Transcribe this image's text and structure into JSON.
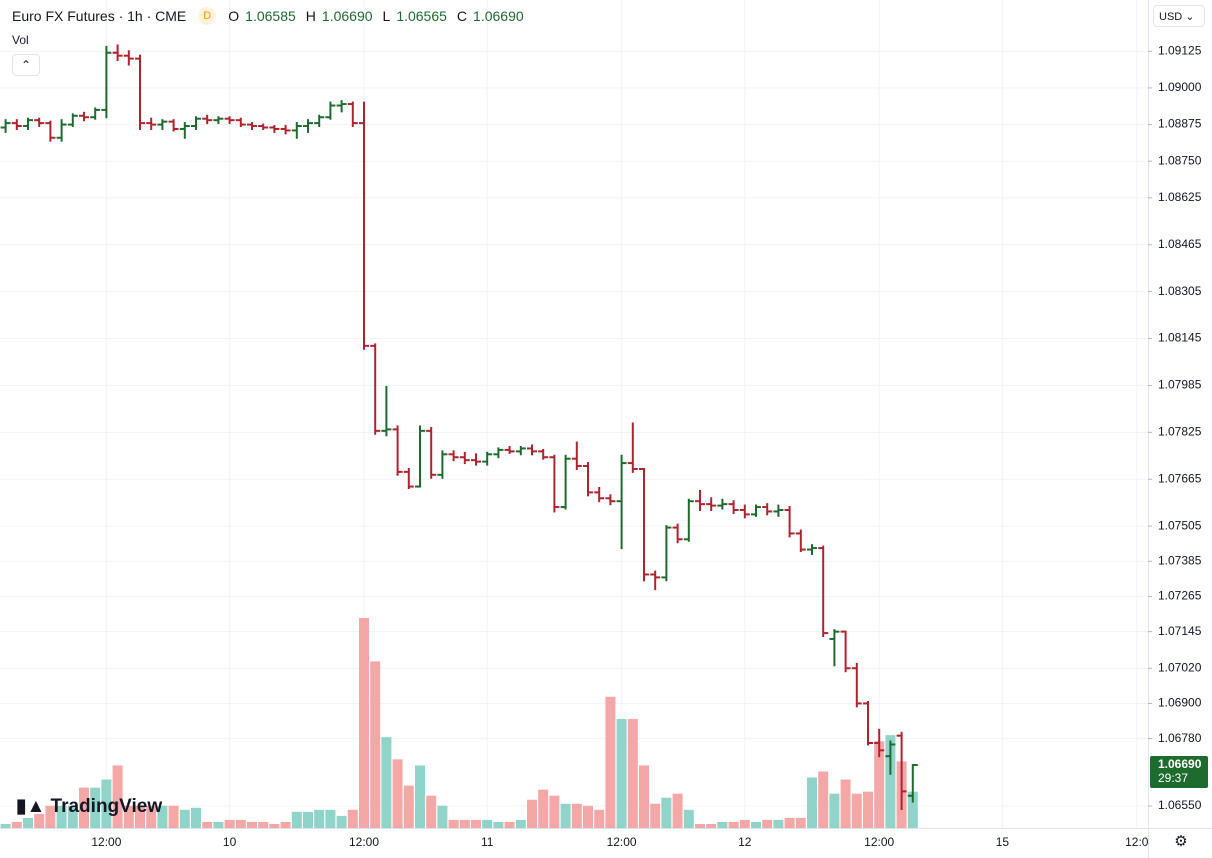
{
  "header": {
    "symbol": "Euro FX Futures · 1h · CME",
    "badge": "D",
    "open_prefix": "O",
    "open": "1.06585",
    "high_prefix": "H",
    "high": "1.06690",
    "low_prefix": "L",
    "low": "1.06565",
    "close_prefix": "C",
    "close": "1.06690",
    "volume_label": "Vol"
  },
  "currency": "USD",
  "logo": "TradingView",
  "price_tag": {
    "price": "1.06690",
    "countdown": "29:37"
  },
  "chart_data": {
    "type": "ohlc",
    "open": [
      1.08865,
      1.0888,
      1.0887,
      1.0889,
      1.0888,
      1.0883,
      1.08875,
      1.08905,
      1.089,
      1.08925,
      1.0912,
      1.0911,
      1.091,
      1.0888,
      1.08875,
      1.08885,
      1.0886,
      1.0887,
      1.08895,
      1.0889,
      1.08895,
      1.0889,
      1.08875,
      1.0887,
      1.08865,
      1.0886,
      1.08855,
      1.0887,
      1.0888,
      1.089,
      1.0894,
      1.08945,
      1.0888,
      1.0812,
      1.0783,
      1.07835,
      1.0769,
      1.0764,
      1.0783,
      1.0768,
      1.0775,
      1.0774,
      1.0773,
      1.07725,
      1.0775,
      1.07765,
      1.0776,
      1.0777,
      1.0776,
      1.0774,
      1.0757,
      1.07735,
      1.0771,
      1.0762,
      1.076,
      1.0759,
      1.0772,
      1.077,
      1.0734,
      1.0733,
      1.075,
      1.0746,
      1.0759,
      1.0758,
      1.07575,
      1.0758,
      1.0756,
      1.07545,
      1.0757,
      1.07555,
      1.0756,
      1.0748,
      1.07425,
      1.0743,
      1.0712,
      1.07145,
      1.0702,
      1.069,
      1.06765,
      1.0672,
      1.0679,
      1.06585
    ],
    "high": [
      1.0889,
      1.0889,
      1.08895,
      1.08895,
      1.08885,
      1.0889,
      1.0891,
      1.08915,
      1.0893,
      1.0914,
      1.09145,
      1.09125,
      1.0911,
      1.08895,
      1.0889,
      1.0889,
      1.0888,
      1.089,
      1.08905,
      1.089,
      1.089,
      1.08895,
      1.0888,
      1.08875,
      1.0887,
      1.0887,
      1.0888,
      1.0889,
      1.08905,
      1.0895,
      1.08955,
      1.0895,
      1.0895,
      1.08125,
      1.0798,
      1.07845,
      1.077,
      1.07845,
      1.0784,
      1.0776,
      1.0776,
      1.07755,
      1.0775,
      1.07755,
      1.0777,
      1.07775,
      1.07775,
      1.0778,
      1.07765,
      1.07745,
      1.07745,
      1.0779,
      1.0772,
      1.07635,
      1.0761,
      1.07745,
      1.07855,
      1.077,
      1.0735,
      1.07505,
      1.0751,
      1.07595,
      1.07625,
      1.076,
      1.07595,
      1.0759,
      1.07575,
      1.07575,
      1.0758,
      1.07575,
      1.0757,
      1.0749,
      1.0744,
      1.07435,
      1.0715,
      1.07145,
      1.07035,
      1.06905,
      1.0681,
      1.0677,
      1.068,
      1.0669
    ],
    "low": [
      1.0885,
      1.0886,
      1.0886,
      1.0887,
      1.0882,
      1.0882,
      1.0887,
      1.0889,
      1.08895,
      1.089,
      1.09095,
      1.0908,
      1.0886,
      1.0886,
      1.0886,
      1.08855,
      1.0883,
      1.0886,
      1.0888,
      1.0888,
      1.0888,
      1.0887,
      1.0886,
      1.0886,
      1.0885,
      1.08845,
      1.0883,
      1.0885,
      1.0887,
      1.08895,
      1.0892,
      1.0887,
      1.0811,
      1.0782,
      1.07815,
      1.0768,
      1.07635,
      1.0764,
      1.0767,
      1.0767,
      1.0773,
      1.0772,
      1.07715,
      1.07715,
      1.0774,
      1.07755,
      1.0775,
      1.0775,
      1.07735,
      1.07555,
      1.07565,
      1.077,
      1.0761,
      1.0759,
      1.0758,
      1.0743,
      1.0769,
      1.0732,
      1.0729,
      1.0732,
      1.0745,
      1.07455,
      1.0756,
      1.0756,
      1.07565,
      1.0755,
      1.07535,
      1.0754,
      1.07545,
      1.0754,
      1.0747,
      1.0742,
      1.0741,
      1.0713,
      1.0703,
      1.0701,
      1.0689,
      1.0676,
      1.0672,
      1.0666,
      1.0654,
      1.06565
    ],
    "close": [
      1.0888,
      1.0887,
      1.0889,
      1.0888,
      1.0883,
      1.08875,
      1.08905,
      1.089,
      1.08925,
      1.0912,
      1.0911,
      1.091,
      1.0888,
      1.08875,
      1.08885,
      1.0886,
      1.0887,
      1.08895,
      1.0889,
      1.08895,
      1.0889,
      1.08875,
      1.0887,
      1.08865,
      1.0886,
      1.08855,
      1.0887,
      1.0888,
      1.089,
      1.0894,
      1.08945,
      1.0888,
      1.0812,
      1.0783,
      1.07835,
      1.0769,
      1.0764,
      1.0783,
      1.0768,
      1.0775,
      1.0774,
      1.0773,
      1.07725,
      1.0775,
      1.07765,
      1.0776,
      1.0777,
      1.0776,
      1.0774,
      1.0757,
      1.07735,
      1.0771,
      1.0762,
      1.076,
      1.0759,
      1.0772,
      1.077,
      1.0734,
      1.0733,
      1.075,
      1.0746,
      1.0759,
      1.0758,
      1.07575,
      1.0758,
      1.0756,
      1.07545,
      1.0757,
      1.07555,
      1.0756,
      1.0748,
      1.07425,
      1.0743,
      1.0714,
      1.07145,
      1.0702,
      1.069,
      1.06765,
      1.0674,
      1.0676,
      1.066,
      1.0669
    ],
    "volume": [
      4,
      6,
      10,
      14,
      22,
      22,
      22,
      40,
      40,
      48,
      62,
      22,
      22,
      22,
      22,
      22,
      18,
      20,
      6,
      6,
      8,
      8,
      6,
      6,
      4,
      6,
      16,
      16,
      18,
      18,
      12,
      18,
      208,
      165,
      90,
      68,
      42,
      62,
      32,
      22,
      8,
      8,
      8,
      8,
      6,
      6,
      8,
      28,
      38,
      32,
      24,
      24,
      22,
      18,
      130,
      108,
      108,
      62,
      24,
      30,
      34,
      18,
      4,
      4,
      6,
      6,
      8,
      6,
      8,
      8,
      10,
      10,
      50,
      56,
      34,
      48,
      34,
      36,
      86,
      92,
      66,
      36
    ],
    "up_color": "#1e6b2e",
    "down_color": "#b0232e",
    "volume_up_color": "#8fd3c9",
    "volume_down_color": "#f4a7a7",
    "ylim": [
      1.06475,
      1.093
    ],
    "yticks": [
      1.09125,
      {
        "value": 1.09,
        "label": "1.09000"
      },
      1.08875,
      {
        "value": 1.0875,
        "label": "1.08750"
      },
      1.08625,
      1.08465,
      1.08305,
      1.08145,
      1.07985,
      1.07825,
      1.07665,
      1.07505,
      1.07385,
      1.07265,
      1.07145,
      {
        "value": 1.0702,
        "label": "1.07020"
      },
      {
        "value": 1.069,
        "label": "1.06900"
      },
      {
        "value": 1.0678,
        "label": "1.06780"
      },
      {
        "value": 1.0655,
        "label": "1.06550"
      }
    ],
    "xlim": [
      -0.5,
      102
    ],
    "xticks": [
      {
        "value": 9,
        "label": "12:00"
      },
      {
        "value": 20,
        "label": "10"
      },
      {
        "value": 32,
        "label": "12:00"
      },
      {
        "value": 43,
        "label": "11"
      },
      {
        "value": 55,
        "label": "12:00"
      },
      {
        "value": 66,
        "label": "12"
      },
      {
        "value": 78,
        "label": "12:00"
      },
      {
        "value": 89,
        "label": "15"
      },
      {
        "value": 101,
        "label": "12:0"
      }
    ],
    "grid": true
  }
}
